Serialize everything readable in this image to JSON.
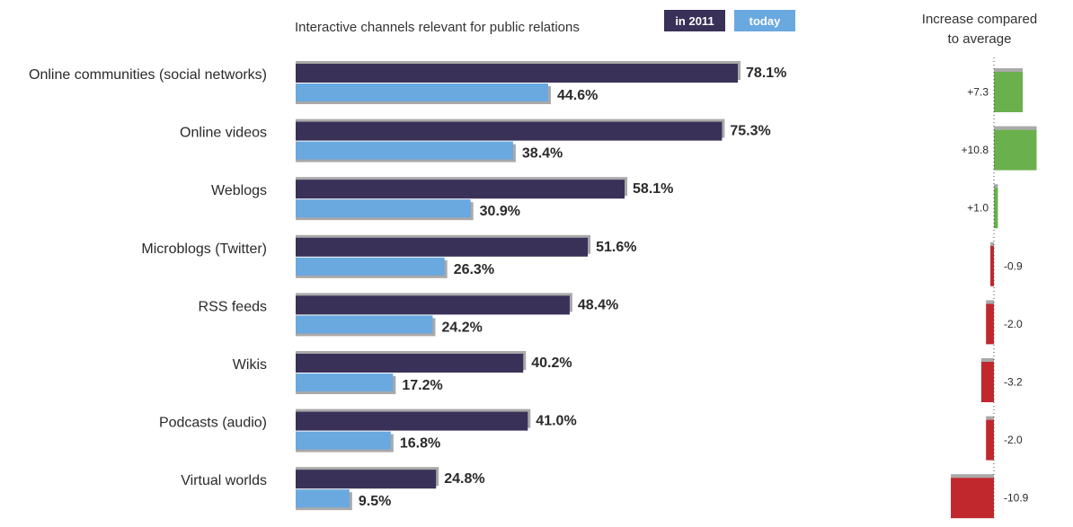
{
  "header": {
    "subtitle": "Interactive channels relevant for public relations",
    "legend": [
      {
        "label": "in 2011",
        "color": "#3a3158"
      },
      {
        "label": "today",
        "color": "#6aa8e0"
      }
    ],
    "right_title_line1": "Increase compared",
    "right_title_line2": "to average"
  },
  "colors": {
    "dark_bar": "#3a3158",
    "light_bar": "#6aa8e0",
    "shadow": "#a9a9a9",
    "positive": "#6ab04c",
    "negative": "#c0282d",
    "text": "#2a2a2a",
    "axis": "#444444"
  },
  "chart_data": [
    {
      "type": "bar",
      "orientation": "horizontal",
      "title": "Interactive channels relevant for public relations",
      "categories": [
        "Online communities (social networks)",
        "Online videos",
        "Weblogs",
        "Microblogs (Twitter)",
        "RSS feeds",
        "Wikis",
        "Podcasts (audio)",
        "Virtual worlds"
      ],
      "series": [
        {
          "name": "in 2011",
          "values": [
            78.1,
            75.3,
            58.1,
            51.6,
            48.4,
            40.2,
            41.0,
            24.8
          ],
          "labels": [
            "78.1%",
            "75.3%",
            "58.1%",
            "51.6%",
            "48.4%",
            "40.2%",
            "41.0%",
            "24.8%"
          ]
        },
        {
          "name": "today",
          "values": [
            44.6,
            38.4,
            30.9,
            26.3,
            24.2,
            17.2,
            16.8,
            9.5
          ],
          "labels": [
            "44.6%",
            "38.4%",
            "30.9%",
            "26.3%",
            "24.2%",
            "17.2%",
            "16.8%",
            "9.5%"
          ]
        }
      ]
    },
    {
      "type": "bar",
      "orientation": "horizontal-diverging",
      "title": "Increase compared to average",
      "values": [
        7.3,
        10.8,
        1.0,
        -0.9,
        -2.0,
        -3.2,
        -2.0,
        -10.9
      ],
      "labels": [
        "+7.3",
        "+10.8",
        "+1.0",
        "-0.9",
        "-2.0",
        "-3.2",
        "-2.0",
        "-10.9"
      ]
    }
  ]
}
